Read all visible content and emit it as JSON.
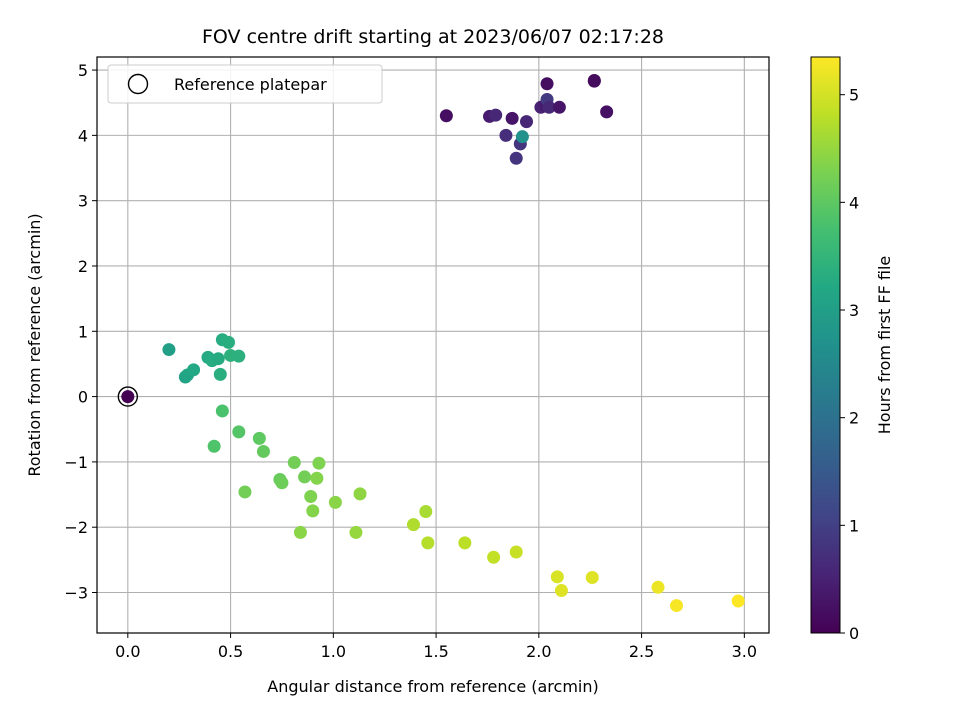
{
  "chart_data": {
    "type": "scatter",
    "title": "FOV centre drift starting at 2023/06/07 02:17:28",
    "xlabel": "Angular distance from reference (arcmin)",
    "ylabel": "Rotation from reference (arcmin)",
    "xlim": [
      -0.15,
      3.12
    ],
    "ylim": [
      -3.62,
      5.2
    ],
    "xticks": [
      0.0,
      0.5,
      1.0,
      1.5,
      2.0,
      2.5,
      3.0
    ],
    "xtick_labels": [
      "0.0",
      "0.5",
      "1.0",
      "1.5",
      "2.0",
      "2.5",
      "3.0"
    ],
    "yticks": [
      -3,
      -2,
      -1,
      0,
      1,
      2,
      3,
      4,
      5
    ],
    "ytick_labels": [
      "−3",
      "−2",
      "−1",
      "0",
      "1",
      "2",
      "3",
      "4",
      "5"
    ],
    "grid": true,
    "colormap": "viridis",
    "colorbar": {
      "label": "Hours from first FF file",
      "min": 0,
      "max": 5.35,
      "ticks": [
        0,
        1,
        2,
        3,
        4,
        5
      ],
      "tick_labels": [
        "0",
        "1",
        "2",
        "3",
        "4",
        "5"
      ]
    },
    "legend": {
      "placement": "upper-left",
      "entries": [
        {
          "label": "Reference platepar",
          "marker": "open-circle"
        }
      ]
    },
    "reference_point": {
      "x": 0.0,
      "y": 0.0
    },
    "points": [
      {
        "x": 0.0,
        "y": 0.0,
        "c": 0.0
      },
      {
        "x": 1.55,
        "y": 4.3,
        "c": 0.2
      },
      {
        "x": 1.76,
        "y": 4.29,
        "c": 0.4
      },
      {
        "x": 1.79,
        "y": 4.31,
        "c": 0.6
      },
      {
        "x": 1.84,
        "y": 4.0,
        "c": 0.7
      },
      {
        "x": 1.87,
        "y": 4.26,
        "c": 0.3
      },
      {
        "x": 1.89,
        "y": 3.65,
        "c": 0.8
      },
      {
        "x": 1.91,
        "y": 3.87,
        "c": 0.8
      },
      {
        "x": 1.92,
        "y": 3.98,
        "c": 2.7
      },
      {
        "x": 1.94,
        "y": 4.21,
        "c": 0.6
      },
      {
        "x": 2.01,
        "y": 4.43,
        "c": 0.5
      },
      {
        "x": 2.03,
        "y": 4.46,
        "c": 0.4
      },
      {
        "x": 2.04,
        "y": 4.55,
        "c": 0.9
      },
      {
        "x": 2.04,
        "y": 4.79,
        "c": 0.2
      },
      {
        "x": 2.05,
        "y": 4.43,
        "c": 0.6
      },
      {
        "x": 2.1,
        "y": 4.43,
        "c": 0.3
      },
      {
        "x": 2.27,
        "y": 4.84,
        "c": 0.1
      },
      {
        "x": 2.27,
        "y": 4.83,
        "c": 0.15
      },
      {
        "x": 2.33,
        "y": 4.36,
        "c": 0.25
      },
      {
        "x": 0.2,
        "y": 0.72,
        "c": 3.0
      },
      {
        "x": 0.28,
        "y": 0.3,
        "c": 3.1
      },
      {
        "x": 0.29,
        "y": 0.33,
        "c": 3.15
      },
      {
        "x": 0.32,
        "y": 0.41,
        "c": 3.2
      },
      {
        "x": 0.39,
        "y": 0.6,
        "c": 3.25
      },
      {
        "x": 0.41,
        "y": 0.55,
        "c": 3.3
      },
      {
        "x": 0.44,
        "y": 0.58,
        "c": 3.28
      },
      {
        "x": 0.45,
        "y": 0.34,
        "c": 3.35
      },
      {
        "x": 0.46,
        "y": 0.87,
        "c": 3.3
      },
      {
        "x": 0.49,
        "y": 0.83,
        "c": 3.35
      },
      {
        "x": 0.5,
        "y": 0.63,
        "c": 3.4
      },
      {
        "x": 0.54,
        "y": 0.62,
        "c": 3.38
      },
      {
        "x": 0.46,
        "y": -0.22,
        "c": 3.8
      },
      {
        "x": 0.42,
        "y": -0.76,
        "c": 3.85
      },
      {
        "x": 0.54,
        "y": -0.54,
        "c": 3.9
      },
      {
        "x": 0.57,
        "y": -1.46,
        "c": 4.2
      },
      {
        "x": 0.64,
        "y": -0.64,
        "c": 4.0
      },
      {
        "x": 0.66,
        "y": -0.84,
        "c": 4.05
      },
      {
        "x": 0.74,
        "y": -1.27,
        "c": 4.1
      },
      {
        "x": 0.75,
        "y": -1.32,
        "c": 4.15
      },
      {
        "x": 0.81,
        "y": -1.01,
        "c": 4.2
      },
      {
        "x": 0.84,
        "y": -2.08,
        "c": 4.4
      },
      {
        "x": 0.86,
        "y": -1.23,
        "c": 4.2
      },
      {
        "x": 0.89,
        "y": -1.53,
        "c": 4.3
      },
      {
        "x": 0.9,
        "y": -1.75,
        "c": 4.35
      },
      {
        "x": 0.92,
        "y": -1.25,
        "c": 4.35
      },
      {
        "x": 0.93,
        "y": -1.02,
        "c": 4.3
      },
      {
        "x": 1.01,
        "y": -1.62,
        "c": 4.4
      },
      {
        "x": 1.11,
        "y": -2.08,
        "c": 4.5
      },
      {
        "x": 1.13,
        "y": -1.49,
        "c": 4.45
      },
      {
        "x": 1.39,
        "y": -1.96,
        "c": 4.7
      },
      {
        "x": 1.45,
        "y": -1.76,
        "c": 4.65
      },
      {
        "x": 1.46,
        "y": -2.24,
        "c": 4.75
      },
      {
        "x": 1.64,
        "y": -2.24,
        "c": 4.8
      },
      {
        "x": 1.78,
        "y": -2.46,
        "c": 4.85
      },
      {
        "x": 1.89,
        "y": -2.38,
        "c": 4.9
      },
      {
        "x": 2.09,
        "y": -2.76,
        "c": 5.05
      },
      {
        "x": 2.11,
        "y": -2.97,
        "c": 5.1
      },
      {
        "x": 2.26,
        "y": -2.77,
        "c": 5.1
      },
      {
        "x": 2.58,
        "y": -2.92,
        "c": 5.2
      },
      {
        "x": 2.67,
        "y": -3.2,
        "c": 5.3
      },
      {
        "x": 2.97,
        "y": -3.13,
        "c": 5.35
      }
    ]
  }
}
